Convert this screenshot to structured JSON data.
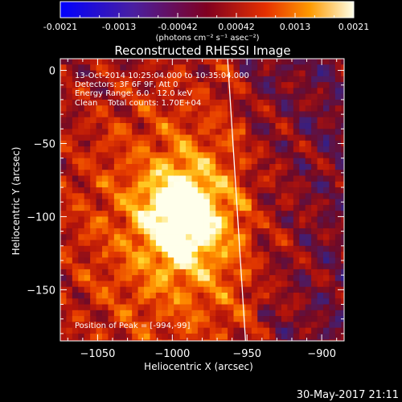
{
  "colorbar": {
    "tick_labels": [
      "-0.0021",
      "-0.0013",
      "-0.00042",
      "0.00042",
      "0.0013",
      "0.0021"
    ],
    "unit_label": "(photons cm⁻² s⁻¹ asec⁻²)"
  },
  "chart_data": {
    "type": "heatmap",
    "title": "Reconstructed RHESSI Image",
    "xlabel": "Heliocentric X (arcsec)",
    "ylabel": "Heliocentric Y (arcsec)",
    "xlim": [
      -1075,
      -885
    ],
    "ylim": [
      -185,
      8
    ],
    "x_ticks": [
      -1050,
      -1000,
      -950,
      -900
    ],
    "y_ticks": [
      0,
      -50,
      -100,
      -150
    ],
    "x_tick_labels": [
      "−1050",
      "−1000",
      "−950",
      "−900"
    ],
    "y_tick_labels": [
      "0",
      "−50",
      "−100",
      "−150"
    ],
    "colorbar_range": [
      -0.0021,
      0.0021
    ],
    "peak": {
      "x": -994,
      "y": -99
    },
    "limb_line": {
      "x": [
        -963,
        -951
      ],
      "y": [
        8,
        -185
      ]
    },
    "annotations": {
      "time_range": "13-Oct-2014 10:25:04.000 to 10:35:04.000",
      "detectors": "Detectors: 3F 6F 9F, Att 0",
      "energy_range": "Energy Range: 6.0 - 12.0 keV",
      "clean": "Clean    Total counts: 1.70E+04",
      "peak_position": "Position of Peak = [-994,-99]"
    }
  },
  "footer": {
    "date_stamp": "30-May-2017 21:11"
  }
}
